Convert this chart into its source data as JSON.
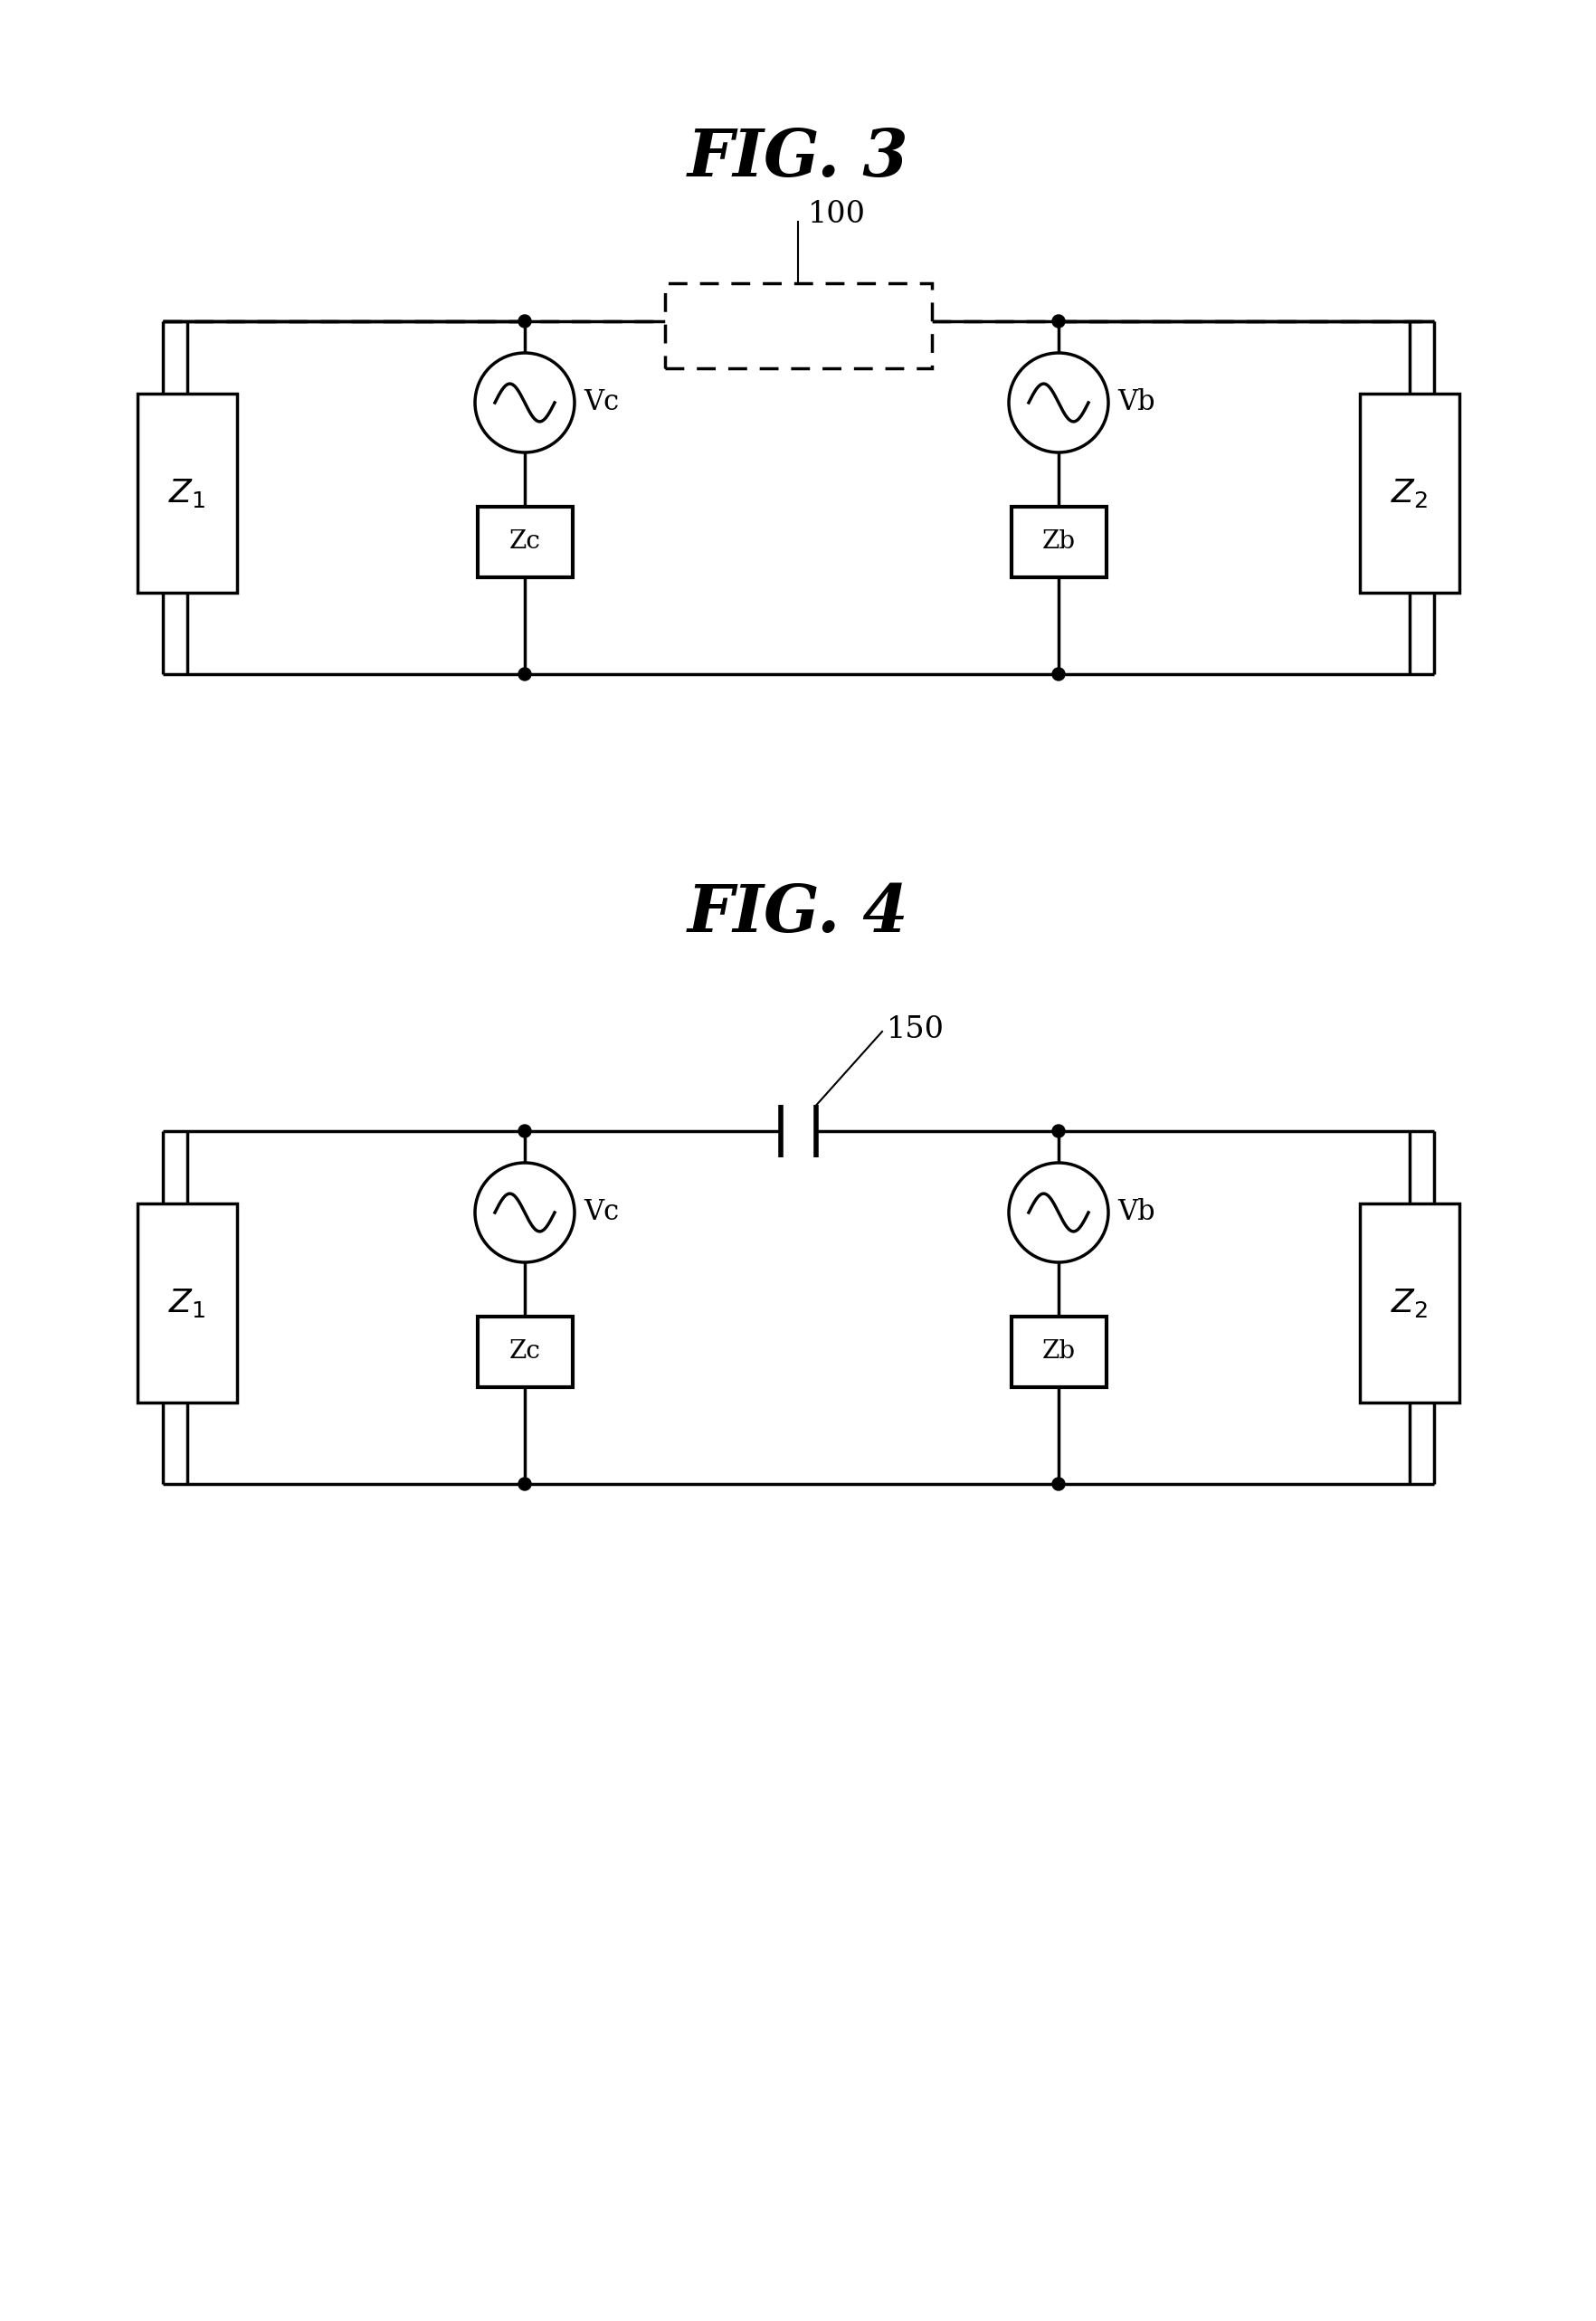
{
  "fig3_title": "FIG. 3",
  "fig4_title": "FIG. 4",
  "bg_color": "#ffffff",
  "line_color": "#000000",
  "line_width": 2.5,
  "label_100": "100",
  "label_150": "150",
  "zc_label": "Zc",
  "zb_label": "Zb",
  "vc_label": "Vc",
  "vb_label": "Vb",
  "z1_label": "$Z_1$",
  "z2_label": "$Z_2$"
}
